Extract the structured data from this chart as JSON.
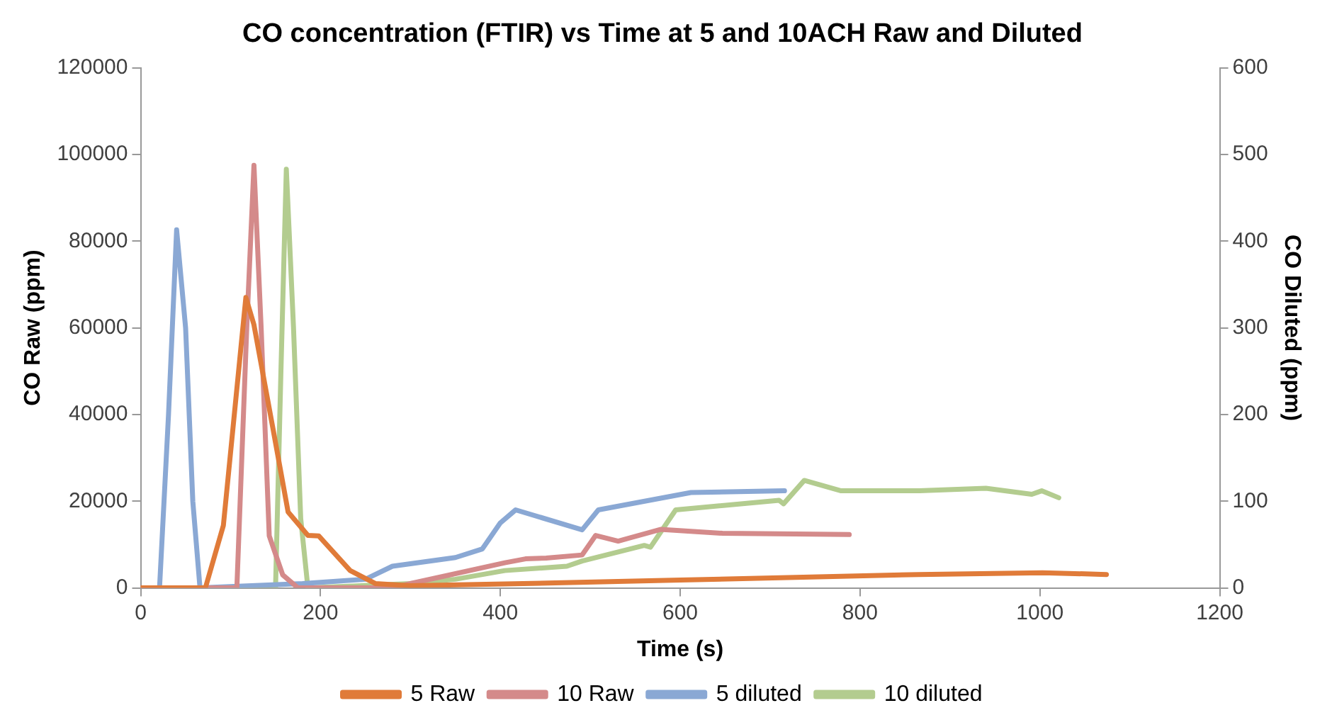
{
  "chart_data": {
    "type": "line",
    "title": "CO concentration (FTIR) vs Time at 5 and 10ACH Raw and Diluted",
    "xlabel": "Time (s)",
    "ylabel": "CO Raw (ppm)",
    "y2label": "CO Diluted (ppm)",
    "xlim": [
      0,
      1200
    ],
    "xticks": [
      0,
      200,
      400,
      600,
      800,
      1000,
      1200
    ],
    "ylim": [
      0,
      120000
    ],
    "yticks": [
      0,
      20000,
      40000,
      60000,
      80000,
      100000,
      120000
    ],
    "y2lim": [
      0,
      600
    ],
    "y2ticks": [
      0,
      100,
      200,
      300,
      400,
      500,
      600
    ],
    "legend": "bottom",
    "marker": "none",
    "line_style": "solid",
    "grid": false,
    "series": [
      {
        "name": "5 Raw",
        "color": "#e07b39",
        "x": [
          0,
          72,
          92,
          117,
          126,
          147,
          164,
          186,
          198,
          233,
          261,
          300,
          405,
          600,
          865,
          1003,
          1074
        ],
        "values": [
          0,
          0,
          14400,
          67000,
          60700,
          36900,
          17500,
          12100,
          12000,
          4000,
          1000,
          500,
          900,
          1800,
          3100,
          3500,
          3100
        ]
      },
      {
        "name": "10 Raw",
        "color": "#d48a8a",
        "x": [
          0,
          107,
          118,
          126,
          134,
          143,
          158,
          175,
          280,
          300,
          405,
          428,
          451,
          491,
          506,
          531,
          578,
          647,
          788
        ],
        "values": [
          0,
          0,
          60000,
          97500,
          60000,
          12000,
          3000,
          0,
          0,
          1000,
          5800,
          6700,
          6900,
          7600,
          12100,
          10800,
          13500,
          12600,
          12300
        ]
      },
      {
        "name": "5 diluted",
        "color": "#8aa8d4",
        "axis": "y2",
        "x": [
          0,
          21,
          31,
          40,
          50,
          58,
          66,
          180,
          250,
          280,
          350,
          380,
          400,
          417,
          491,
          509,
          612,
          716
        ],
        "values": [
          0,
          0,
          200,
          413,
          300,
          100,
          0,
          5,
          10,
          25,
          35,
          45,
          75,
          90,
          67,
          90,
          110,
          112
        ]
      },
      {
        "name": "10 diluted",
        "color": "#b3cc8f",
        "axis": "y2",
        "x": [
          0,
          150,
          156,
          162,
          170,
          178,
          186,
          300,
          350,
          405,
          474,
          491,
          560,
          567,
          595,
          710,
          715,
          738,
          779,
          866,
          940,
          991,
          1002,
          1021
        ],
        "values": [
          0,
          0,
          250,
          483,
          300,
          80,
          0,
          5,
          10,
          20,
          25,
          31,
          49,
          47,
          90,
          101,
          97,
          124,
          112,
          112,
          115,
          108,
          112,
          104
        ]
      }
    ]
  }
}
